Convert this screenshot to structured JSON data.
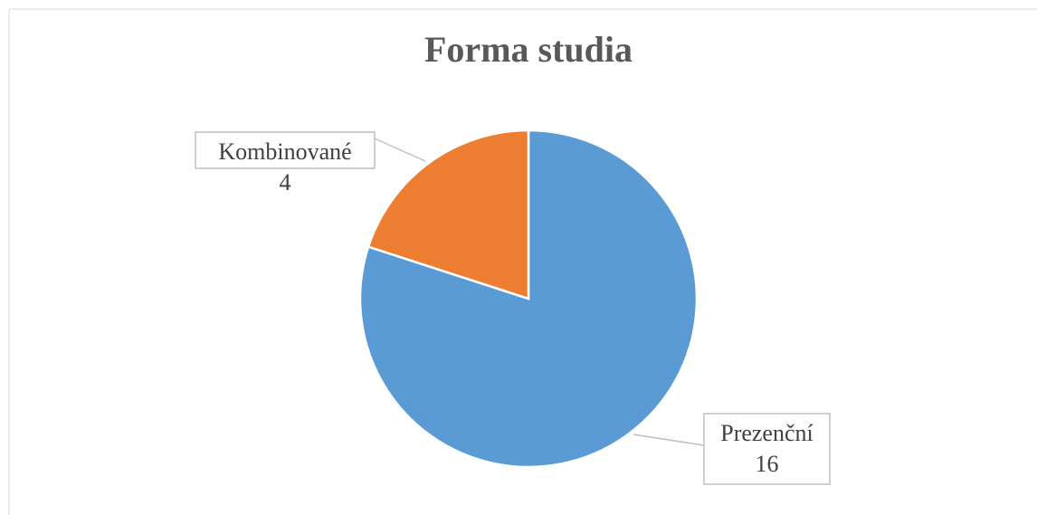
{
  "chart_data": {
    "type": "pie",
    "title": "Forma studia",
    "categories": [
      "Prezenční",
      "Kombinované"
    ],
    "values": [
      16,
      4
    ],
    "colors": [
      "#5b9bd5",
      "#ed7d31"
    ]
  }
}
